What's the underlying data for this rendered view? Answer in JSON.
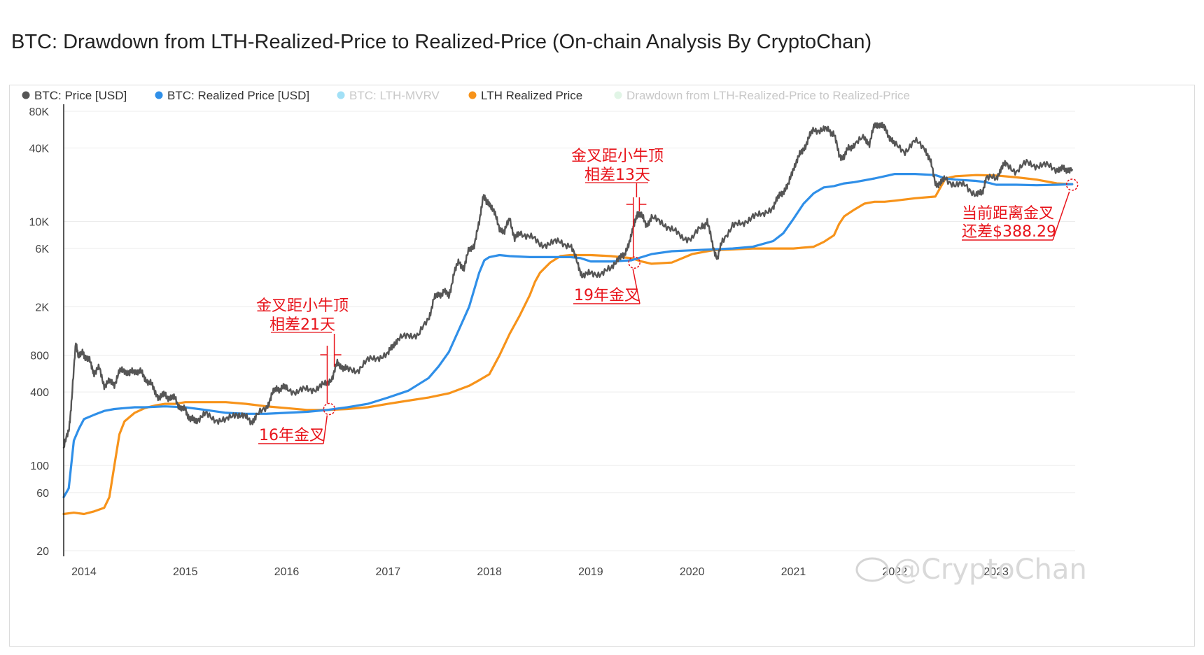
{
  "title": "BTC: Drawdown from LTH-Realized-Price to Realized-Price (On-chain Analysis By CryptoChan)",
  "watermark": "@CryptoChan",
  "chart_data": {
    "type": "line",
    "yscale": "log",
    "ylim": [
      20,
      80000
    ],
    "xlim": [
      "2013-10",
      "2023-09"
    ],
    "y_ticks": [
      {
        "value": 20,
        "label": "20"
      },
      {
        "value": 60,
        "label": "60"
      },
      {
        "value": 100,
        "label": "100"
      },
      {
        "value": 400,
        "label": "400"
      },
      {
        "value": 800,
        "label": "800"
      },
      {
        "value": 2000,
        "label": "2K"
      },
      {
        "value": 6000,
        "label": "6K"
      },
      {
        "value": 10000,
        "label": "10K"
      },
      {
        "value": 40000,
        "label": "40K"
      },
      {
        "value": 80000,
        "label": "80K"
      }
    ],
    "x_ticks": [
      {
        "value": 2014,
        "label": "2014"
      },
      {
        "value": 2015,
        "label": "2015"
      },
      {
        "value": 2016,
        "label": "2016"
      },
      {
        "value": 2017,
        "label": "2017"
      },
      {
        "value": 2018,
        "label": "2018"
      },
      {
        "value": 2019,
        "label": "2019"
      },
      {
        "value": 2020,
        "label": "2020"
      },
      {
        "value": 2021,
        "label": "2021"
      },
      {
        "value": 2022,
        "label": "2022"
      },
      {
        "value": 2023,
        "label": "2023"
      }
    ],
    "legend": [
      {
        "name": "BTC: Price [USD]",
        "color": "#555555",
        "visible": true
      },
      {
        "name": "BTC: Realized Price [USD]",
        "color": "#2f8fe8",
        "visible": true
      },
      {
        "name": "BTC: LTH-MVRV",
        "color": "#55c7ef",
        "visible": false
      },
      {
        "name": "LTH Realized Price",
        "color": "#f7931a",
        "visible": true
      },
      {
        "name": "Drawdown from LTH-Realized-Price to Realized-Price",
        "color": "#c9ecd2",
        "visible": false
      }
    ],
    "series": [
      {
        "name": "BTC: Price [USD]",
        "color": "#555555",
        "x": [
          2013.8,
          2013.85,
          2013.88,
          2013.92,
          2013.95,
          2013.99,
          2014.02,
          2014.06,
          2014.1,
          2014.15,
          2014.2,
          2014.25,
          2014.3,
          2014.35,
          2014.4,
          2014.45,
          2014.5,
          2014.55,
          2014.6,
          2014.65,
          2014.7,
          2014.75,
          2014.8,
          2014.85,
          2014.9,
          2014.95,
          2015.0,
          2015.04,
          2015.08,
          2015.12,
          2015.2,
          2015.3,
          2015.4,
          2015.5,
          2015.58,
          2015.65,
          2015.7,
          2015.8,
          2015.85,
          2015.9,
          2015.95,
          2016.0,
          2016.1,
          2016.2,
          2016.3,
          2016.38,
          2016.45,
          2016.5,
          2016.55,
          2016.6,
          2016.7,
          2016.8,
          2016.9,
          2017.0,
          2017.05,
          2017.1,
          2017.2,
          2017.3,
          2017.4,
          2017.45,
          2017.5,
          2017.55,
          2017.6,
          2017.65,
          2017.7,
          2017.75,
          2017.8,
          2017.85,
          2017.9,
          2017.94,
          2017.97,
          2018.0,
          2018.05,
          2018.1,
          2018.15,
          2018.2,
          2018.25,
          2018.3,
          2018.4,
          2018.5,
          2018.6,
          2018.7,
          2018.8,
          2018.87,
          2018.92,
          2019.0,
          2019.1,
          2019.2,
          2019.28,
          2019.33,
          2019.38,
          2019.42,
          2019.46,
          2019.5,
          2019.55,
          2019.6,
          2019.7,
          2019.8,
          2019.9,
          2020.0,
          2020.1,
          2020.15,
          2020.2,
          2020.25,
          2020.3,
          2020.4,
          2020.5,
          2020.6,
          2020.7,
          2020.8,
          2020.85,
          2020.9,
          2020.95,
          2021.0,
          2021.05,
          2021.1,
          2021.15,
          2021.2,
          2021.28,
          2021.35,
          2021.4,
          2021.45,
          2021.5,
          2021.55,
          2021.6,
          2021.7,
          2021.75,
          2021.8,
          2021.85,
          2021.9,
          2021.95,
          2022.0,
          2022.1,
          2022.2,
          2022.3,
          2022.35,
          2022.4,
          2022.45,
          2022.5,
          2022.6,
          2022.7,
          2022.8,
          2022.86,
          2022.9,
          2023.0,
          2023.05,
          2023.1,
          2023.2,
          2023.3,
          2023.4,
          2023.5,
          2023.6,
          2023.65,
          2023.7,
          2023.75
        ],
        "y": [
          140,
          190,
          360,
          1000,
          800,
          820,
          780,
          700,
          580,
          620,
          460,
          480,
          470,
          580,
          610,
          560,
          600,
          590,
          520,
          480,
          400,
          360,
          380,
          360,
          350,
          300,
          280,
          250,
          230,
          240,
          260,
          240,
          230,
          270,
          250,
          230,
          250,
          300,
          370,
          430,
          430,
          430,
          400,
          420,
          430,
          460,
          530,
          680,
          650,
          600,
          610,
          720,
          780,
          800,
          1000,
          1050,
          1200,
          1150,
          1600,
          2300,
          2500,
          2700,
          2400,
          3800,
          4600,
          4200,
          5800,
          6500,
          9500,
          17000,
          14000,
          14500,
          11500,
          9000,
          8000,
          11000,
          7000,
          8200,
          7500,
          6500,
          6600,
          6800,
          6400,
          4500,
          3600,
          3700,
          3800,
          4000,
          5300,
          5000,
          7000,
          8500,
          12000,
          11000,
          9500,
          10500,
          10000,
          8500,
          7500,
          7200,
          9200,
          10000,
          6500,
          5000,
          6800,
          9600,
          9200,
          11500,
          11000,
          13500,
          15500,
          18000,
          19500,
          28000,
          33000,
          40000,
          47000,
          58000,
          55000,
          57000,
          52000,
          35000,
          34000,
          40000,
          43000,
          48000,
          44000,
          60000,
          64000,
          57000,
          50000,
          42000,
          38000,
          45000,
          40000,
          31000,
          21000,
          20000,
          23000,
          19500,
          20000,
          16500,
          16800,
          23000,
          22000,
          28000,
          29000,
          26000,
          30000,
          29000,
          28500,
          27000,
          26500,
          27000,
          26500
        ]
      },
      {
        "name": "BTC: Realized Price [USD]",
        "color": "#2f8fe8",
        "x": [
          2013.8,
          2013.85,
          2013.9,
          2013.95,
          2014.0,
          2014.1,
          2014.2,
          2014.3,
          2014.4,
          2014.5,
          2014.6,
          2014.8,
          2015.0,
          2015.2,
          2015.4,
          2015.6,
          2015.8,
          2016.0,
          2016.2,
          2016.4,
          2016.6,
          2016.8,
          2017.0,
          2017.2,
          2017.4,
          2017.5,
          2017.6,
          2017.7,
          2017.8,
          2017.9,
          2017.95,
          2018.0,
          2018.1,
          2018.2,
          2018.4,
          2018.6,
          2018.8,
          2018.9,
          2019.0,
          2019.2,
          2019.4,
          2019.6,
          2019.8,
          2020.0,
          2020.2,
          2020.4,
          2020.6,
          2020.8,
          2020.9,
          2021.0,
          2021.1,
          2021.2,
          2021.3,
          2021.4,
          2021.5,
          2021.6,
          2021.8,
          2022.0,
          2022.2,
          2022.4,
          2022.5,
          2022.6,
          2022.8,
          2022.9,
          2023.0,
          2023.2,
          2023.4,
          2023.6,
          2023.75
        ],
        "y": [
          55,
          65,
          160,
          200,
          240,
          260,
          280,
          290,
          295,
          300,
          300,
          305,
          300,
          285,
          270,
          265,
          265,
          270,
          275,
          285,
          300,
          320,
          360,
          410,
          520,
          650,
          850,
          1300,
          2000,
          3800,
          4800,
          5100,
          5300,
          5200,
          5100,
          5100,
          5100,
          5000,
          4700,
          4700,
          4800,
          5400,
          5700,
          5800,
          5900,
          6000,
          6200,
          6900,
          8000,
          10500,
          14000,
          17000,
          19000,
          19500,
          20500,
          21000,
          22500,
          24500,
          24500,
          24000,
          22500,
          22000,
          21500,
          21000,
          20000,
          20000,
          19800,
          20000,
          20200
        ]
      },
      {
        "name": "LTH Realized Price",
        "color": "#f7931a",
        "x": [
          2013.8,
          2013.9,
          2014.0,
          2014.1,
          2014.2,
          2014.25,
          2014.3,
          2014.35,
          2014.4,
          2014.5,
          2014.6,
          2014.7,
          2014.8,
          2014.9,
          2015.0,
          2015.2,
          2015.4,
          2015.6,
          2015.8,
          2016.0,
          2016.2,
          2016.4,
          2016.6,
          2016.8,
          2017.0,
          2017.2,
          2017.4,
          2017.6,
          2017.8,
          2017.9,
          2018.0,
          2018.1,
          2018.2,
          2018.3,
          2018.4,
          2018.45,
          2018.5,
          2018.6,
          2018.7,
          2018.8,
          2018.9,
          2019.0,
          2019.2,
          2019.4,
          2019.5,
          2019.6,
          2019.8,
          2020.0,
          2020.2,
          2020.4,
          2020.6,
          2020.8,
          2021.0,
          2021.2,
          2021.3,
          2021.4,
          2021.45,
          2021.5,
          2021.6,
          2021.7,
          2021.8,
          2021.9,
          2022.0,
          2022.2,
          2022.4,
          2022.5,
          2022.6,
          2022.8,
          2023.0,
          2023.2,
          2023.4,
          2023.6,
          2023.75
        ],
        "y": [
          40,
          41,
          40,
          42,
          45,
          55,
          100,
          180,
          230,
          270,
          295,
          310,
          320,
          320,
          330,
          330,
          330,
          320,
          305,
          295,
          285,
          285,
          290,
          300,
          320,
          340,
          360,
          390,
          450,
          500,
          560,
          800,
          1200,
          1700,
          2500,
          3200,
          3800,
          4600,
          5200,
          5300,
          5300,
          5300,
          5200,
          5000,
          4700,
          4500,
          4600,
          5400,
          5800,
          5900,
          6000,
          6000,
          6000,
          6200,
          6800,
          7700,
          9500,
          11000,
          12500,
          14000,
          14500,
          14500,
          14800,
          15500,
          16000,
          22500,
          23500,
          24000,
          23800,
          23000,
          22000,
          20500,
          20200
        ]
      }
    ],
    "annotations": [
      {
        "type": "callout",
        "lines": [
          "金叉距小牛顶",
          "相差21天"
        ],
        "x": 2016.42,
        "y": 800
      },
      {
        "type": "label",
        "text": "16年金叉",
        "x": 2016.4,
        "y": 295
      },
      {
        "type": "callout",
        "lines": [
          "金叉距小牛顶",
          "相差13天"
        ],
        "x": 2019.47,
        "y": 12000
      },
      {
        "type": "label",
        "text": "19年金叉",
        "x": 2019.45,
        "y": 4700
      },
      {
        "type": "label",
        "lines": [
          "当前距离金叉",
          "还差$388.29"
        ],
        "x": 2023.75,
        "y": 20000
      }
    ],
    "grid": true,
    "legend_position": "top-left"
  }
}
